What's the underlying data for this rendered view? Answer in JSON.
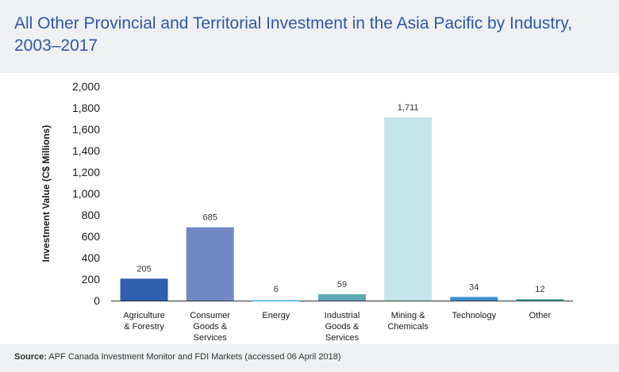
{
  "header": {
    "title": "All Other Provincial and Territorial Investment in the Asia Pacific by Industry, 2003–2017"
  },
  "footer": {
    "source_label": "Source:",
    "source_text": " APF Canada Investment Monitor and FDI Markets (accessed 06 April 2018)"
  },
  "chart_data": {
    "type": "bar",
    "title": "All Other Provincial and Territorial Investment in the Asia Pacific by Industry, 2003–2017",
    "ylabel": "Investment Value (C$ Millions)",
    "xlabel": "",
    "ylim": [
      0,
      2000
    ],
    "yticks": [
      0,
      200,
      400,
      600,
      800,
      1000,
      1200,
      1400,
      1600,
      1800,
      2000
    ],
    "ytick_labels": [
      "0",
      "200",
      "400",
      "600",
      "800",
      "1,000",
      "1,200",
      "1,400",
      "1,600",
      "1,800",
      "2,000"
    ],
    "grid": false,
    "legend": "none",
    "categories": [
      [
        "Agriculture",
        "& Forestry"
      ],
      [
        "Consumer",
        "Goods &",
        "Services"
      ],
      [
        "Energy"
      ],
      [
        "Industrial",
        "Goods &",
        "Services"
      ],
      [
        "Mining &",
        "Chemicals"
      ],
      [
        "Technology"
      ],
      [
        "Other"
      ]
    ],
    "values": [
      205,
      685,
      6,
      59,
      1711,
      34,
      12
    ],
    "value_labels": [
      "205",
      "685",
      "6",
      "59",
      "1,711",
      "34",
      "12"
    ],
    "colors": [
      "#2e5fae",
      "#6e89c4",
      "#5cc3e6",
      "#5ca9b5",
      "#c4e5e9",
      "#3a8fcf",
      "#2a8a86"
    ]
  }
}
